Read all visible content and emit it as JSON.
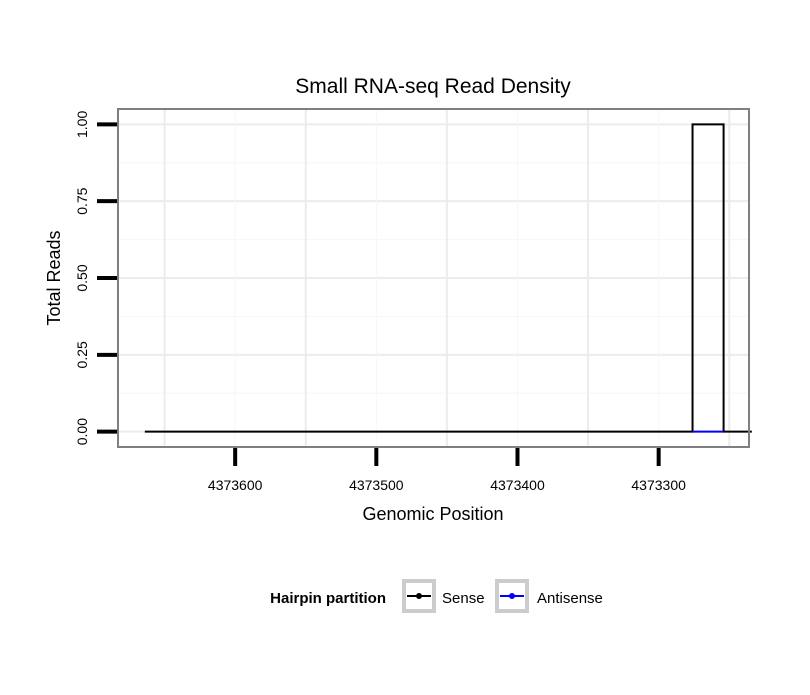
{
  "chart_data": {
    "type": "line",
    "title": "Small RNA-seq Read Density",
    "xlabel": "Genomic Position",
    "ylabel": "Total Reads",
    "x_reversed": true,
    "xlim": [
      4373683,
      4373236
    ],
    "ylim": [
      -0.05,
      1.05
    ],
    "x_ticks": [
      4373600,
      4373500,
      4373400,
      4373300
    ],
    "x_tick_labels": [
      "4373600",
      "4373500",
      "4373400",
      "4373300"
    ],
    "y_ticks": [
      0,
      0.25,
      0.5,
      0.75,
      1
    ],
    "y_tick_labels": [
      "0.00",
      "0.25",
      "0.50",
      "0.75",
      "1.00"
    ],
    "grid": true,
    "legend": {
      "title": "Hairpin partition",
      "position": "bottom",
      "entries": [
        {
          "label": "Sense",
          "color": "#000000"
        },
        {
          "label": "Antisense",
          "color": "#0000ff"
        }
      ]
    },
    "series": [
      {
        "name": "Sense",
        "color": "#000000",
        "x": [
          4373664,
          4373276,
          4373276,
          4373254,
          4373254,
          4373234
        ],
        "y": [
          0,
          0,
          1,
          1,
          0,
          0
        ]
      },
      {
        "name": "Antisense",
        "color": "#0000ff",
        "x": [
          4373276,
          4373254
        ],
        "y": [
          0,
          0
        ]
      }
    ]
  }
}
